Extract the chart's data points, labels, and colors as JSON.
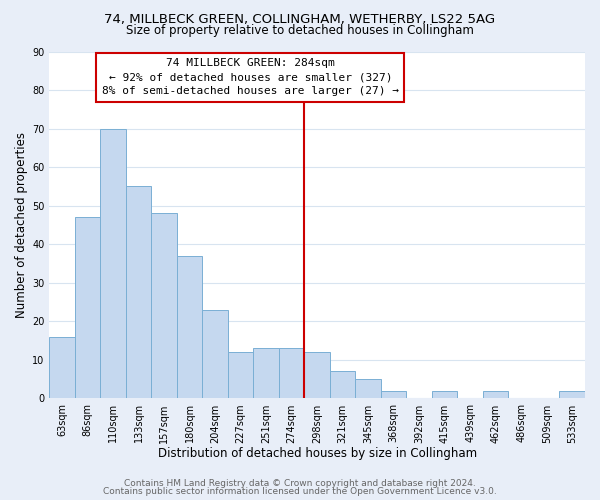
{
  "title_line1": "74, MILLBECK GREEN, COLLINGHAM, WETHERBY, LS22 5AG",
  "title_line2": "Size of property relative to detached houses in Collingham",
  "xlabel": "Distribution of detached houses by size in Collingham",
  "ylabel": "Number of detached properties",
  "bar_labels": [
    "63sqm",
    "86sqm",
    "110sqm",
    "133sqm",
    "157sqm",
    "180sqm",
    "204sqm",
    "227sqm",
    "251sqm",
    "274sqm",
    "298sqm",
    "321sqm",
    "345sqm",
    "368sqm",
    "392sqm",
    "415sqm",
    "439sqm",
    "462sqm",
    "486sqm",
    "509sqm",
    "533sqm"
  ],
  "bar_values": [
    16,
    47,
    70,
    55,
    48,
    37,
    23,
    12,
    13,
    13,
    12,
    7,
    5,
    2,
    0,
    2,
    0,
    2,
    0,
    0,
    2
  ],
  "bar_color": "#c5d8ef",
  "bar_edge_color": "#7aafd4",
  "vline_x": 9.5,
  "vline_color": "#cc0000",
  "annotation_title": "74 MILLBECK GREEN: 284sqm",
  "annotation_line1": "← 92% of detached houses are smaller (327)",
  "annotation_line2": "8% of semi-detached houses are larger (27) →",
  "annotation_box_facecolor": "#ffffff",
  "annotation_box_edgecolor": "#cc0000",
  "ylim": [
    0,
    90
  ],
  "yticks": [
    0,
    10,
    20,
    30,
    40,
    50,
    60,
    70,
    80,
    90
  ],
  "footer_line1": "Contains HM Land Registry data © Crown copyright and database right 2024.",
  "footer_line2": "Contains public sector information licensed under the Open Government Licence v3.0.",
  "fig_background_color": "#e8eef8",
  "plot_background_color": "#ffffff",
  "grid_color": "#d8e4f0",
  "title_fontsize": 9.5,
  "subtitle_fontsize": 8.5,
  "axis_label_fontsize": 8.5,
  "tick_fontsize": 7,
  "footer_fontsize": 6.5,
  "annotation_fontsize": 8
}
